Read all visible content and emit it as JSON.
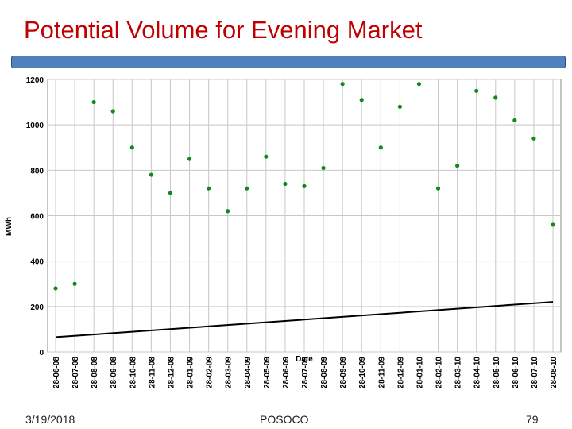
{
  "slide": {
    "title": "Potential Volume for Evening Market",
    "footer_date": "3/19/2018",
    "footer_org": "POSOCO",
    "page_number": "79"
  },
  "colors": {
    "title": "#c00000",
    "title_bar": "#4f81bd",
    "points": "#138a13",
    "trend": "#000000",
    "grid": "#c8c8c8"
  },
  "chart_data": {
    "type": "scatter",
    "xlabel": "Date",
    "ylabel": "MWh",
    "ylim": [
      0,
      1200
    ],
    "yticks": [
      0,
      200,
      400,
      600,
      800,
      1000,
      1200
    ],
    "ytick_labels": [
      "0",
      "200",
      "400",
      "600",
      "800",
      "1000",
      "1200"
    ],
    "xticks": [
      "28-06-08",
      "28-07-08",
      "28-08-08",
      "28-09-08",
      "28-10-08",
      "28-11-08",
      "28-12-08",
      "28-01-09",
      "28-02-09",
      "28-03-09",
      "28-04-09",
      "28-05-09",
      "28-06-09",
      "28-07-09",
      "28-08-09",
      "28-09-09",
      "28-10-09",
      "28-11-09",
      "28-12-09",
      "28-01-10",
      "28-02-10",
      "28-03-10",
      "28-04-10",
      "28-05-10",
      "28-06-10",
      "28-07-10",
      "28-08-10"
    ],
    "xlim": [
      "28-06-08",
      "28-08-10"
    ],
    "grid": true,
    "series": [
      {
        "kind": "points",
        "x": [
          "28-06-08",
          "28-07-08",
          "28-08-08",
          "28-09-08",
          "28-10-08",
          "28-11-08",
          "28-12-08",
          "28-01-09",
          "28-02-09",
          "28-03-09",
          "28-04-09",
          "28-05-09",
          "28-06-09",
          "28-07-09",
          "28-08-09",
          "28-09-09",
          "28-10-09",
          "28-11-09",
          "28-12-09",
          "28-01-10",
          "28-02-10",
          "28-03-10",
          "28-04-10",
          "28-05-10",
          "28-06-10",
          "28-07-10",
          "28-08-10"
        ],
        "y": [
          280,
          300,
          1100,
          1060,
          900,
          780,
          700,
          850,
          720,
          620,
          720,
          860,
          740,
          730,
          810,
          1180,
          1110,
          900,
          1080,
          1180,
          720,
          820,
          1150,
          1120,
          1020,
          940,
          560
        ]
      },
      {
        "kind": "trend",
        "x": [
          "28-06-08",
          "28-08-10"
        ],
        "y": [
          65,
          220
        ]
      }
    ]
  }
}
